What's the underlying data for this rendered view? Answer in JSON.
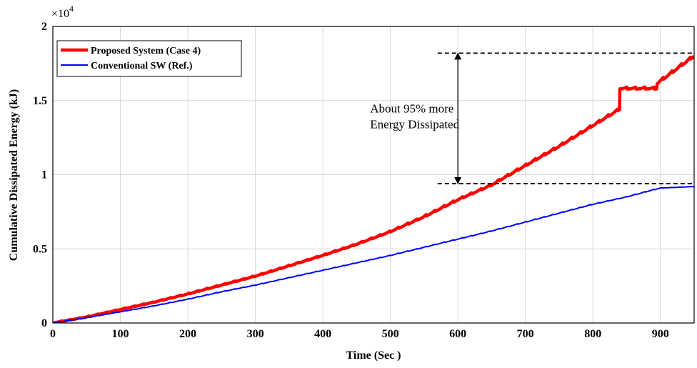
{
  "chart_data": {
    "type": "line",
    "title": "",
    "xlabel": "Time (Sec )",
    "ylabel": "Cumulative Dissipated Energy (kJ)",
    "y_exponent_label": "×10",
    "y_exponent_power": "4",
    "xlim": [
      0,
      950
    ],
    "ylim": [
      0,
      20000
    ],
    "xticks": [
      0,
      100,
      200,
      300,
      400,
      500,
      600,
      700,
      800,
      900
    ],
    "xtick_labels": [
      "0",
      "100",
      "200",
      "300",
      "400",
      "500",
      "600",
      "700",
      "800",
      "900"
    ],
    "yticks": [
      0,
      5000,
      10000,
      15000,
      20000
    ],
    "ytick_labels": [
      "0",
      "0.5",
      "1",
      "1.5",
      "2"
    ],
    "grid": true,
    "legend_position": "top-left",
    "series": [
      {
        "name": "Proposed System (Case 4)",
        "color": "#ff0000",
        "line_width": "thick",
        "x": [
          0,
          50,
          100,
          150,
          200,
          250,
          300,
          350,
          400,
          450,
          500,
          550,
          600,
          650,
          700,
          750,
          800,
          850,
          900,
          950
        ],
        "y": [
          0,
          400,
          900,
          1400,
          1950,
          2550,
          3150,
          3850,
          4550,
          5300,
          6150,
          7150,
          8300,
          9300,
          10600,
          11900,
          13300,
          14700,
          16300,
          18000
        ]
      },
      {
        "name": "Conventional SW (Ref.)",
        "color": "#0000ff",
        "line_width": "thin",
        "x": [
          0,
          50,
          100,
          150,
          200,
          250,
          300,
          350,
          400,
          450,
          500,
          550,
          600,
          650,
          700,
          750,
          800,
          850,
          900,
          950
        ],
        "y": [
          0,
          350,
          750,
          1150,
          1600,
          2100,
          2550,
          3050,
          3550,
          4050,
          4550,
          5100,
          5650,
          6200,
          6800,
          7400,
          8000,
          8500,
          9100,
          9200
        ]
      }
    ],
    "annotations": [
      {
        "kind": "dashed-line",
        "y": 18200,
        "x_from": 570,
        "x_to": 950
      },
      {
        "kind": "dashed-line",
        "y": 9400,
        "x_from": 570,
        "x_to": 950
      },
      {
        "kind": "double-arrow",
        "x": 600,
        "y_from": 9400,
        "y_to": 18200
      },
      {
        "kind": "text",
        "lines": [
          "About 95% more",
          "Energy Dissipated"
        ],
        "x": 470,
        "y": 14200
      }
    ]
  }
}
